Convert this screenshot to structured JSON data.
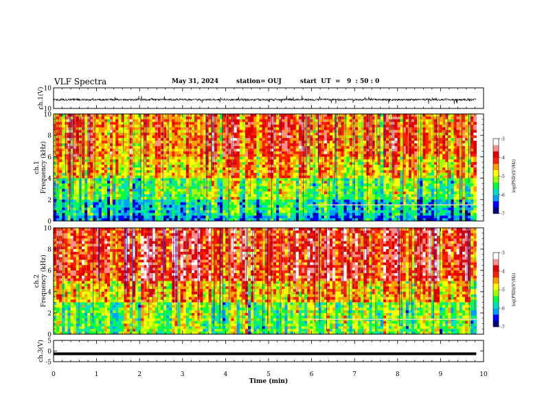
{
  "header": {
    "title": "VLF Spectra",
    "date": "May 31, 2024",
    "station": "station= OUJ",
    "start": "start  UT  =   9  : 50 : 0"
  },
  "colorbar": {
    "label": "log(PSD)(V²/Hz)",
    "ticks": [
      "-3",
      "-4",
      "-5",
      "-6",
      "-7"
    ],
    "colors": [
      "#000080",
      "#0000ff",
      "#00a0ff",
      "#00e0c0",
      "#00ff40",
      "#a0ff00",
      "#ffff00",
      "#ffa000",
      "#ff2000",
      "#e00000",
      "#ff9090",
      "#ffffff"
    ]
  },
  "chart_data": [
    {
      "type": "line",
      "name": "ch1-waveform",
      "ylabel": "ch.1(V)",
      "ylim": [
        -10,
        10
      ],
      "yticks": [
        "10",
        "-10"
      ],
      "xlim": [
        0,
        10
      ],
      "x_extent_min": 9.83,
      "baseline": -1.5,
      "noise_amplitude": 2,
      "color": "#000000"
    },
    {
      "type": "heatmap",
      "name": "ch1-spectrogram",
      "xlabel": "",
      "ylabel": "ch.1\nFrequency (kHz)",
      "ylim": [
        0,
        10
      ],
      "yticks": [
        "0",
        "2",
        "4",
        "6",
        "8",
        "10"
      ],
      "xlim": [
        0,
        10
      ],
      "colorscale_range": [
        -7,
        -3
      ],
      "features": [
        {
          "band_khz": [
            0,
            2
          ],
          "level": "low (blue/cyan)"
        },
        {
          "band_khz": [
            2,
            4
          ],
          "level": "mid (green)"
        },
        {
          "band_khz": [
            4,
            10
          ],
          "level": "high (yellow/red)"
        },
        {
          "line_khz": 1.5,
          "from_min": 5.9,
          "to_min": 9.83
        }
      ]
    },
    {
      "type": "heatmap",
      "name": "ch2-spectrogram",
      "ylabel": "ch.2\nFrequency (kHz)",
      "ylim": [
        0,
        10
      ],
      "yticks": [
        "0",
        "2",
        "4",
        "6",
        "8",
        "10"
      ],
      "xlim": [
        0,
        10
      ],
      "colorscale_range": [
        -7,
        -3
      ],
      "features": [
        {
          "band_khz": [
            0,
            3
          ],
          "level": "mid (green)"
        },
        {
          "band_khz": [
            3,
            10
          ],
          "level": "high (red)"
        },
        {
          "line_khz": 1.4,
          "from_min": 5.9,
          "to_min": 9.83
        }
      ]
    },
    {
      "type": "line",
      "name": "ch3-waveform",
      "ylabel": "ch.3(V)",
      "ylim": [
        -5,
        5
      ],
      "yticks": [
        "5",
        "0",
        "-5"
      ],
      "xlim": [
        0,
        10
      ],
      "x_extent_min": 9.83,
      "baseline": -1.3,
      "color": "#000000"
    }
  ],
  "xaxis": {
    "label": "Time  (min)",
    "ticks": [
      "0",
      "1",
      "2",
      "3",
      "4",
      "5",
      "6",
      "7",
      "8",
      "9",
      "10"
    ]
  }
}
